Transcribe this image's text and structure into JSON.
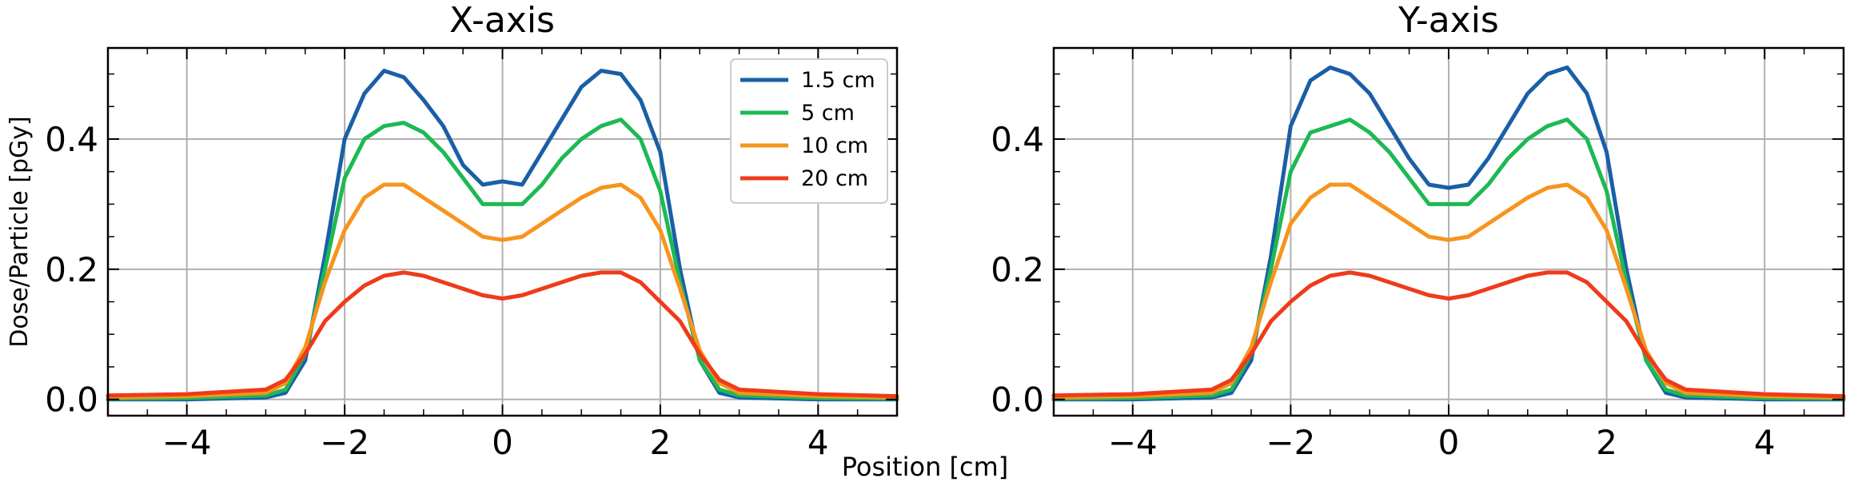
{
  "figure": {
    "xlabel": "Position [cm]",
    "ylabel": "Dose/Particle [pGy]"
  },
  "chart_data": [
    {
      "type": "line",
      "title": "X-axis",
      "xlabel": "",
      "ylabel": "Dose/Particle [pGy]",
      "xlim": [
        -5,
        5
      ],
      "ylim": [
        -0.025,
        0.54
      ],
      "xticks": [
        -4,
        -2,
        0,
        2,
        4
      ],
      "xtick_labels": [
        "−4",
        "−2",
        "0",
        "2",
        "4"
      ],
      "yticks": [
        0.0,
        0.2,
        0.4
      ],
      "ytick_labels": [
        "0.0",
        "0.2",
        "0.4"
      ],
      "grid": true,
      "legend": "top-right",
      "series": [
        {
          "name": "1.5 cm",
          "color": "#1a5fa6",
          "x": [
            -5,
            -4,
            -3,
            -2.75,
            -2.5,
            -2.25,
            -2,
            -1.75,
            -1.5,
            -1.25,
            -1,
            -0.75,
            -0.5,
            -0.25,
            0,
            0.25,
            0.5,
            0.75,
            1,
            1.25,
            1.5,
            1.75,
            2,
            2.25,
            2.5,
            2.75,
            3,
            4,
            5
          ],
          "y": [
            0.0,
            0.0,
            0.003,
            0.01,
            0.06,
            0.22,
            0.4,
            0.47,
            0.505,
            0.495,
            0.46,
            0.42,
            0.36,
            0.33,
            0.335,
            0.33,
            0.38,
            0.43,
            0.48,
            0.505,
            0.5,
            0.46,
            0.38,
            0.2,
            0.06,
            0.01,
            0.003,
            0.0,
            0.0
          ]
        },
        {
          "name": "5 cm",
          "color": "#1db954",
          "x": [
            -5,
            -4,
            -3,
            -2.75,
            -2.5,
            -2.25,
            -2,
            -1.75,
            -1.5,
            -1.25,
            -1,
            -0.75,
            -0.5,
            -0.25,
            0,
            0.25,
            0.5,
            0.75,
            1,
            1.25,
            1.5,
            1.75,
            2,
            2.25,
            2.5,
            2.75,
            3,
            4,
            5
          ],
          "y": [
            0.001,
            0.002,
            0.006,
            0.015,
            0.07,
            0.2,
            0.34,
            0.4,
            0.42,
            0.425,
            0.41,
            0.38,
            0.34,
            0.3,
            0.3,
            0.3,
            0.33,
            0.37,
            0.4,
            0.42,
            0.43,
            0.4,
            0.32,
            0.18,
            0.06,
            0.015,
            0.006,
            0.002,
            0.001
          ]
        },
        {
          "name": "10 cm",
          "color": "#f7941d",
          "x": [
            -5,
            -4,
            -3,
            -2.75,
            -2.5,
            -2.25,
            -2,
            -1.75,
            -1.5,
            -1.25,
            -1,
            -0.75,
            -0.5,
            -0.25,
            0,
            0.25,
            0.5,
            0.75,
            1,
            1.25,
            1.5,
            1.75,
            2,
            2.25,
            2.5,
            2.75,
            3,
            4,
            5
          ],
          "y": [
            0.003,
            0.005,
            0.01,
            0.025,
            0.08,
            0.18,
            0.26,
            0.31,
            0.33,
            0.33,
            0.31,
            0.29,
            0.27,
            0.25,
            0.245,
            0.25,
            0.27,
            0.29,
            0.31,
            0.325,
            0.33,
            0.31,
            0.26,
            0.17,
            0.075,
            0.025,
            0.01,
            0.005,
            0.003
          ]
        },
        {
          "name": "20 cm",
          "color": "#ee3b1a",
          "x": [
            -5,
            -4,
            -3,
            -2.75,
            -2.5,
            -2.25,
            -2,
            -1.75,
            -1.5,
            -1.25,
            -1,
            -0.75,
            -0.5,
            -0.25,
            0,
            0.25,
            0.5,
            0.75,
            1,
            1.25,
            1.5,
            1.75,
            2,
            2.25,
            2.5,
            2.75,
            3,
            4,
            5
          ],
          "y": [
            0.006,
            0.008,
            0.015,
            0.03,
            0.07,
            0.12,
            0.15,
            0.175,
            0.19,
            0.195,
            0.19,
            0.18,
            0.17,
            0.16,
            0.155,
            0.16,
            0.17,
            0.18,
            0.19,
            0.195,
            0.195,
            0.18,
            0.15,
            0.12,
            0.07,
            0.03,
            0.015,
            0.008,
            0.005
          ]
        }
      ]
    },
    {
      "type": "line",
      "title": "Y-axis",
      "xlabel": "",
      "ylabel": "",
      "xlim": [
        -5,
        5
      ],
      "ylim": [
        -0.025,
        0.54
      ],
      "xticks": [
        -4,
        -2,
        0,
        2,
        4
      ],
      "xtick_labels": [
        "−4",
        "−2",
        "0",
        "2",
        "4"
      ],
      "yticks": [
        0.0,
        0.2,
        0.4
      ],
      "ytick_labels": [
        "0.0",
        "0.2",
        "0.4"
      ],
      "grid": true,
      "legend": "none",
      "series": [
        {
          "name": "1.5 cm",
          "color": "#1a5fa6",
          "x": [
            -5,
            -4,
            -3,
            -2.75,
            -2.5,
            -2.25,
            -2,
            -1.75,
            -1.5,
            -1.25,
            -1,
            -0.75,
            -0.5,
            -0.25,
            0,
            0.25,
            0.5,
            0.75,
            1,
            1.25,
            1.5,
            1.75,
            2,
            2.25,
            2.5,
            2.75,
            3,
            4,
            5
          ],
          "y": [
            0.0,
            0.0,
            0.003,
            0.01,
            0.06,
            0.22,
            0.42,
            0.49,
            0.51,
            0.5,
            0.47,
            0.42,
            0.37,
            0.33,
            0.325,
            0.33,
            0.37,
            0.42,
            0.47,
            0.5,
            0.51,
            0.47,
            0.38,
            0.2,
            0.06,
            0.01,
            0.003,
            0.0,
            0.0
          ]
        },
        {
          "name": "5 cm",
          "color": "#1db954",
          "x": [
            -5,
            -4,
            -3,
            -2.75,
            -2.5,
            -2.25,
            -2,
            -1.75,
            -1.5,
            -1.25,
            -1,
            -0.75,
            -0.5,
            -0.25,
            0,
            0.25,
            0.5,
            0.75,
            1,
            1.25,
            1.5,
            1.75,
            2,
            2.25,
            2.5,
            2.75,
            3,
            4,
            5
          ],
          "y": [
            0.001,
            0.002,
            0.006,
            0.015,
            0.07,
            0.2,
            0.35,
            0.41,
            0.42,
            0.43,
            0.41,
            0.38,
            0.34,
            0.3,
            0.3,
            0.3,
            0.33,
            0.37,
            0.4,
            0.42,
            0.43,
            0.4,
            0.32,
            0.18,
            0.06,
            0.015,
            0.006,
            0.002,
            0.001
          ]
        },
        {
          "name": "10 cm",
          "color": "#f7941d",
          "x": [
            -5,
            -4,
            -3,
            -2.75,
            -2.5,
            -2.25,
            -2,
            -1.75,
            -1.5,
            -1.25,
            -1,
            -0.75,
            -0.5,
            -0.25,
            0,
            0.25,
            0.5,
            0.75,
            1,
            1.25,
            1.5,
            1.75,
            2,
            2.25,
            2.5,
            2.75,
            3,
            4,
            5
          ],
          "y": [
            0.003,
            0.005,
            0.01,
            0.025,
            0.08,
            0.18,
            0.27,
            0.31,
            0.33,
            0.33,
            0.31,
            0.29,
            0.27,
            0.25,
            0.245,
            0.25,
            0.27,
            0.29,
            0.31,
            0.325,
            0.33,
            0.31,
            0.26,
            0.17,
            0.075,
            0.025,
            0.01,
            0.005,
            0.003
          ]
        },
        {
          "name": "20 cm",
          "color": "#ee3b1a",
          "x": [
            -5,
            -4,
            -3,
            -2.75,
            -2.5,
            -2.25,
            -2,
            -1.75,
            -1.5,
            -1.25,
            -1,
            -0.75,
            -0.5,
            -0.25,
            0,
            0.25,
            0.5,
            0.75,
            1,
            1.25,
            1.5,
            1.75,
            2,
            2.25,
            2.5,
            2.75,
            3,
            4,
            5
          ],
          "y": [
            0.006,
            0.008,
            0.015,
            0.03,
            0.07,
            0.12,
            0.15,
            0.175,
            0.19,
            0.195,
            0.19,
            0.18,
            0.17,
            0.16,
            0.155,
            0.16,
            0.17,
            0.18,
            0.19,
            0.195,
            0.195,
            0.18,
            0.15,
            0.12,
            0.07,
            0.03,
            0.015,
            0.008,
            0.005
          ]
        }
      ]
    }
  ]
}
